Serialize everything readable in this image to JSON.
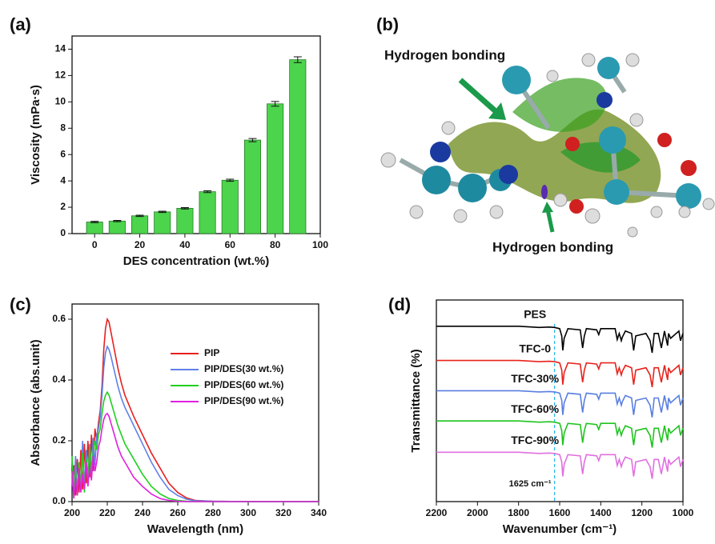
{
  "chart_data": [
    {
      "panel": "(a)",
      "type": "bar",
      "x_label": "DES concentration (wt.%)",
      "y_label": "Viscosity (mPa·s)",
      "x": [
        0,
        10,
        20,
        30,
        40,
        50,
        60,
        70,
        80,
        90
      ],
      "values": [
        0.88,
        0.95,
        1.35,
        1.65,
        1.92,
        3.18,
        4.05,
        7.1,
        9.85,
        13.2
      ],
      "errors": [
        0.05,
        0.05,
        0.05,
        0.05,
        0.05,
        0.07,
        0.08,
        0.12,
        0.18,
        0.22
      ],
      "color": "#4cd44c",
      "xlim": [
        -10,
        100
      ],
      "xticks": [
        0,
        20,
        40,
        60,
        80,
        100
      ],
      "ylim": [
        0,
        15
      ],
      "yticks": [
        0,
        2,
        4,
        6,
        8,
        10,
        12,
        14
      ]
    },
    {
      "panel": "(b)",
      "type": "image",
      "annotations": [
        "Hydrogen bonding",
        "Hydrogen bonding"
      ],
      "color": "#1a9a4a"
    },
    {
      "panel": "(c)",
      "type": "line",
      "x_label": "Wavelength (nm)",
      "y_label": "Absorbance (abs.unit)",
      "legend": "upper right",
      "x": [
        200,
        201,
        202,
        203,
        204,
        205,
        206,
        207,
        208,
        209,
        210,
        211,
        212,
        213,
        214,
        215,
        216,
        217,
        218,
        219,
        220,
        221,
        222,
        224,
        226,
        228,
        230,
        235,
        240,
        245,
        250,
        255,
        260,
        265,
        270,
        280,
        300,
        340
      ],
      "series": [
        {
          "name": "PIP",
          "color": "#e82020",
          "values": [
            0.05,
            0.12,
            0.02,
            0.14,
            0.03,
            0.17,
            0.04,
            0.19,
            0.06,
            0.2,
            0.08,
            0.22,
            0.1,
            0.24,
            0.2,
            0.26,
            0.3,
            0.38,
            0.5,
            0.57,
            0.6,
            0.59,
            0.56,
            0.5,
            0.44,
            0.39,
            0.35,
            0.28,
            0.22,
            0.16,
            0.11,
            0.06,
            0.03,
            0.012,
            0.004,
            0.001,
            0,
            0
          ]
        },
        {
          "name": "PIP/DES(30 wt.%)",
          "color": "#6080e8",
          "values": [
            0.08,
            0.02,
            0.15,
            0.03,
            0.12,
            0.05,
            0.2,
            0.04,
            0.17,
            0.07,
            0.19,
            0.09,
            0.21,
            0.12,
            0.22,
            0.24,
            0.28,
            0.35,
            0.44,
            0.49,
            0.51,
            0.5,
            0.48,
            0.43,
            0.38,
            0.34,
            0.31,
            0.25,
            0.19,
            0.13,
            0.08,
            0.04,
            0.02,
            0.008,
            0.003,
            0.001,
            0,
            0
          ]
        },
        {
          "name": "PIP/DES(60 wt.%)",
          "color": "#20d020",
          "values": [
            0.15,
            0.03,
            0.1,
            0.02,
            0.13,
            0.05,
            0.16,
            0.03,
            0.14,
            0.06,
            0.18,
            0.08,
            0.16,
            0.2,
            0.17,
            0.22,
            0.24,
            0.29,
            0.33,
            0.35,
            0.36,
            0.35,
            0.33,
            0.29,
            0.25,
            0.22,
            0.19,
            0.14,
            0.09,
            0.05,
            0.025,
            0.01,
            0.004,
            0.001,
            0,
            0,
            0,
            0
          ]
        },
        {
          "name": "PIP/DES(90 wt.%)",
          "color": "#e020e0",
          "values": [
            0.1,
            0.01,
            0.08,
            0.02,
            0.11,
            0.03,
            0.09,
            0.04,
            0.13,
            0.05,
            0.12,
            0.07,
            0.15,
            0.1,
            0.13,
            0.18,
            0.2,
            0.24,
            0.27,
            0.285,
            0.29,
            0.28,
            0.26,
            0.22,
            0.18,
            0.15,
            0.13,
            0.08,
            0.05,
            0.025,
            0.01,
            0.004,
            0.001,
            0,
            0,
            0,
            0,
            0
          ]
        }
      ],
      "xlim": [
        200,
        340
      ],
      "xticks": [
        200,
        220,
        240,
        260,
        280,
        300,
        320,
        340
      ],
      "ylim": [
        0,
        0.65
      ],
      "yticks": [
        {
          "value": 0,
          "label": "0.0"
        },
        0.2,
        0.4,
        0.6
      ]
    },
    {
      "panel": "(d)",
      "type": "line",
      "x_label": "Wavenumber (cm⁻¹)",
      "y_label": "Transmittance (%)",
      "series_labels": true,
      "reference_line": {
        "x": 1625,
        "label": "1625 cm⁻¹",
        "color": "#2ab8e8"
      },
      "x": [
        2200,
        1800,
        1700,
        1650,
        1625,
        1600,
        1590,
        1585,
        1578,
        1560,
        1500,
        1488,
        1480,
        1470,
        1420,
        1410,
        1400,
        1330,
        1320,
        1310,
        1300,
        1295,
        1280,
        1250,
        1240,
        1230,
        1180,
        1160,
        1150,
        1140,
        1120,
        1105,
        1090,
        1075,
        1070,
        1060,
        1020,
        1012,
        1000
      ],
      "series": [
        {
          "name": "PES",
          "color": "#000000",
          "values": [
            8.7,
            8.7,
            8.64,
            8.66,
            8.64,
            8.58,
            8.22,
            7.5,
            8.1,
            8.58,
            8.52,
            7.62,
            8.22,
            8.58,
            8.52,
            8.28,
            8.58,
            8.58,
            8.04,
            8.34,
            7.98,
            8.16,
            8.46,
            8.34,
            7.5,
            8.22,
            8.34,
            7.98,
            7.38,
            8.34,
            8.34,
            7.62,
            8.46,
            7.74,
            8.34,
            8.1,
            8.46,
            7.98,
            8.34
          ]
        },
        {
          "name": "TFC-0",
          "color": "#e8221c",
          "values": [
            7,
            7,
            6.94,
            6.96,
            6.94,
            6.88,
            6.52,
            5.8,
            6.4,
            6.88,
            6.82,
            5.92,
            6.52,
            6.88,
            6.82,
            6.58,
            6.88,
            6.88,
            6.34,
            6.64,
            6.28,
            6.46,
            6.76,
            6.64,
            5.8,
            6.52,
            6.64,
            6.28,
            5.68,
            6.64,
            6.64,
            5.92,
            6.76,
            6.04,
            6.64,
            6.4,
            6.76,
            6.28,
            6.64
          ]
        },
        {
          "name": "TFC-30%",
          "color": "#5a7fe0",
          "values": [
            5.5,
            5.5,
            5.44,
            5.46,
            5.44,
            5.38,
            5.02,
            4.3,
            4.9,
            5.38,
            5.32,
            4.42,
            5.02,
            5.38,
            5.32,
            5.08,
            5.38,
            5.38,
            4.84,
            5.14,
            4.78,
            4.96,
            5.26,
            5.14,
            4.3,
            5.02,
            5.14,
            4.78,
            4.18,
            5.14,
            5.14,
            4.42,
            5.26,
            4.54,
            5.14,
            4.9,
            5.26,
            4.78,
            5.14
          ]
        },
        {
          "name": "TFC-60%",
          "color": "#1ec41e",
          "values": [
            4,
            4,
            3.94,
            3.96,
            3.94,
            3.88,
            3.52,
            2.8,
            3.4,
            3.88,
            3.82,
            2.92,
            3.52,
            3.88,
            3.82,
            3.58,
            3.88,
            3.88,
            3.34,
            3.64,
            3.28,
            3.46,
            3.76,
            3.64,
            2.8,
            3.52,
            3.64,
            3.28,
            2.68,
            3.64,
            3.64,
            2.92,
            3.76,
            3.04,
            3.64,
            3.4,
            3.76,
            3.28,
            3.64
          ]
        },
        {
          "name": "TFC-90%",
          "color": "#e070e0",
          "values": [
            2.45,
            2.45,
            2.39,
            2.41,
            2.39,
            2.33,
            1.97,
            1.25,
            1.85,
            2.33,
            2.27,
            1.37,
            1.97,
            2.33,
            2.27,
            2.03,
            2.33,
            2.33,
            1.79,
            2.09,
            1.73,
            1.91,
            2.21,
            2.09,
            1.25,
            1.97,
            2.09,
            1.73,
            1.13,
            2.09,
            2.09,
            1.37,
            2.21,
            1.49,
            2.09,
            1.85,
            2.21,
            1.73,
            2.09
          ]
        }
      ],
      "xlim": [
        2200,
        1000
      ],
      "xticks": [
        2200,
        2000,
        1800,
        1600,
        1400,
        1200,
        1000
      ],
      "ylim": [
        0,
        10
      ]
    }
  ]
}
